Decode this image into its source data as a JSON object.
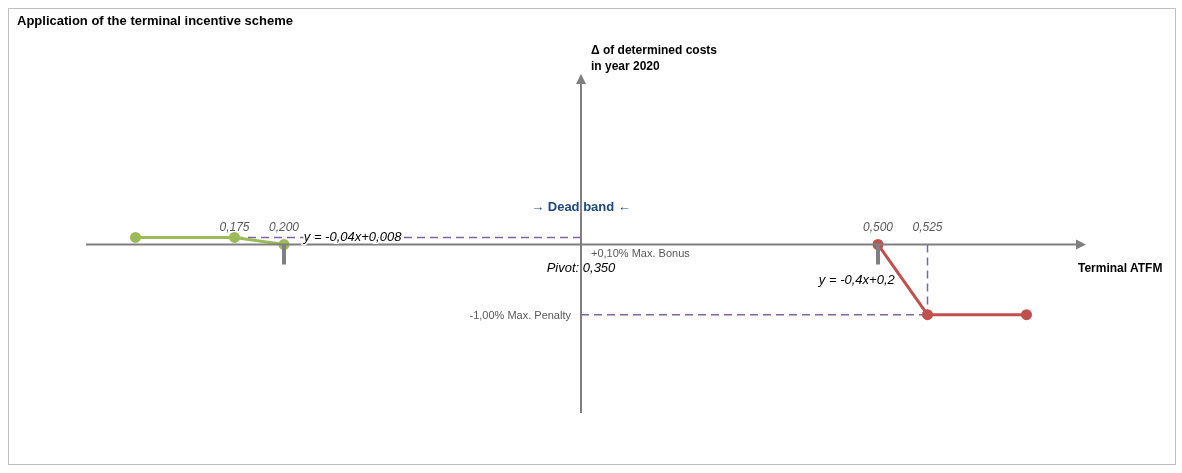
{
  "chart_data": {
    "type": "line",
    "title": "Application of the terminal incentive scheme",
    "xlabel": "Terminal ATFM",
    "ylabel": "Δ of determined costs\nin year 2020",
    "xlim": [
      0.1,
      0.6
    ],
    "ylim": [
      -2.4,
      2.4
    ],
    "xticks": [
      {
        "value": 0.175,
        "label": "0,175"
      },
      {
        "value": 0.2,
        "label": "0,200"
      },
      {
        "value": 0.5,
        "label": "0,500"
      },
      {
        "value": 0.525,
        "label": "0,525"
      }
    ],
    "series": [
      {
        "color": "#9bbb59",
        "x": [
          0.125,
          0.175,
          0.2
        ],
        "values": [
          0.1,
          0.1,
          0
        ]
      },
      {
        "color": "#c0504d",
        "x": [
          0.5,
          0.525,
          0.575
        ],
        "values": [
          0,
          -1,
          -1
        ]
      }
    ],
    "marker": "circle",
    "line_style": "solid",
    "ref_lines": [
      {
        "axis": "x",
        "value": 0.35,
        "label": "Pivot: 0,350",
        "color": "#7f7f7f",
        "line_style": "solid"
      },
      {
        "axis": "y",
        "value": 0.1,
        "label": "+0,10% Max. Bonus",
        "color": "#8064a2",
        "line_style": "dashed"
      },
      {
        "axis": "y",
        "value": -1,
        "label": "-1,00% Max. Penalty",
        "color": "#8064a2",
        "line_style": "dashed"
      },
      {
        "axis": "x",
        "value": 0.525,
        "color": "#8064a2",
        "line_style": "dashed"
      }
    ],
    "annotations": [
      {
        "text": "→ Dead band ←",
        "x": 0.35,
        "y": 0.53
      },
      {
        "text": "y = -0,04x+0,008",
        "x": 0.21,
        "y": 0.1
      },
      {
        "text": "y = -0,4x+0,2",
        "x": 0.5125,
        "y": -0.5
      }
    ]
  }
}
